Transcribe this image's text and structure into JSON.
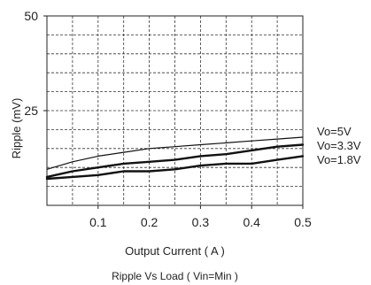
{
  "chart_data": {
    "type": "line",
    "title": "",
    "caption": "Ripple Vs Load ( Vin=Min )",
    "xlabel": "Output Current ( A )",
    "ylabel": "Ripple (mV)",
    "xlim": [
      0,
      0.5
    ],
    "ylim": [
      0,
      50
    ],
    "grid": true,
    "x_ticks": [
      0.1,
      0.2,
      0.3,
      0.4,
      0.5
    ],
    "x_tick_labels": [
      "0.1",
      "0.2",
      "0.3",
      "0.4",
      "0.5"
    ],
    "y_ticks": [
      25,
      50
    ],
    "y_tick_labels": [
      "25",
      "50"
    ],
    "x_grid": [
      0.05,
      0.1,
      0.15,
      0.2,
      0.25,
      0.3,
      0.35,
      0.4,
      0.45
    ],
    "y_grid": [
      5,
      10,
      15,
      20,
      25,
      30,
      35,
      40,
      45
    ],
    "series": [
      {
        "name": "Vo=5V",
        "color": "#111111",
        "stroke": "thin",
        "x": [
          0,
          0.05,
          0.1,
          0.15,
          0.2,
          0.25,
          0.3,
          0.35,
          0.4,
          0.45,
          0.5
        ],
        "y": [
          9.5,
          11.5,
          13,
          14,
          15,
          15.5,
          16,
          16.5,
          17,
          17.5,
          18
        ]
      },
      {
        "name": "Vo=3.3V",
        "color": "#111111",
        "stroke": "thick",
        "x": [
          0,
          0.05,
          0.1,
          0.15,
          0.2,
          0.25,
          0.3,
          0.35,
          0.4,
          0.45,
          0.5
        ],
        "y": [
          7.5,
          9,
          10,
          11,
          11.5,
          12,
          13,
          13.5,
          14.5,
          15.5,
          16
        ]
      },
      {
        "name": "Vo=1.8V",
        "color": "#111111",
        "stroke": "thick",
        "x": [
          0,
          0.05,
          0.1,
          0.15,
          0.2,
          0.25,
          0.3,
          0.35,
          0.4,
          0.45,
          0.5
        ],
        "y": [
          7,
          7.5,
          8,
          9,
          9,
          9.5,
          10.5,
          11,
          11,
          12,
          13
        ]
      }
    ],
    "series_labels": [
      "Vo=5V",
      "Vo=3.3V",
      "Vo=1.8V"
    ]
  }
}
